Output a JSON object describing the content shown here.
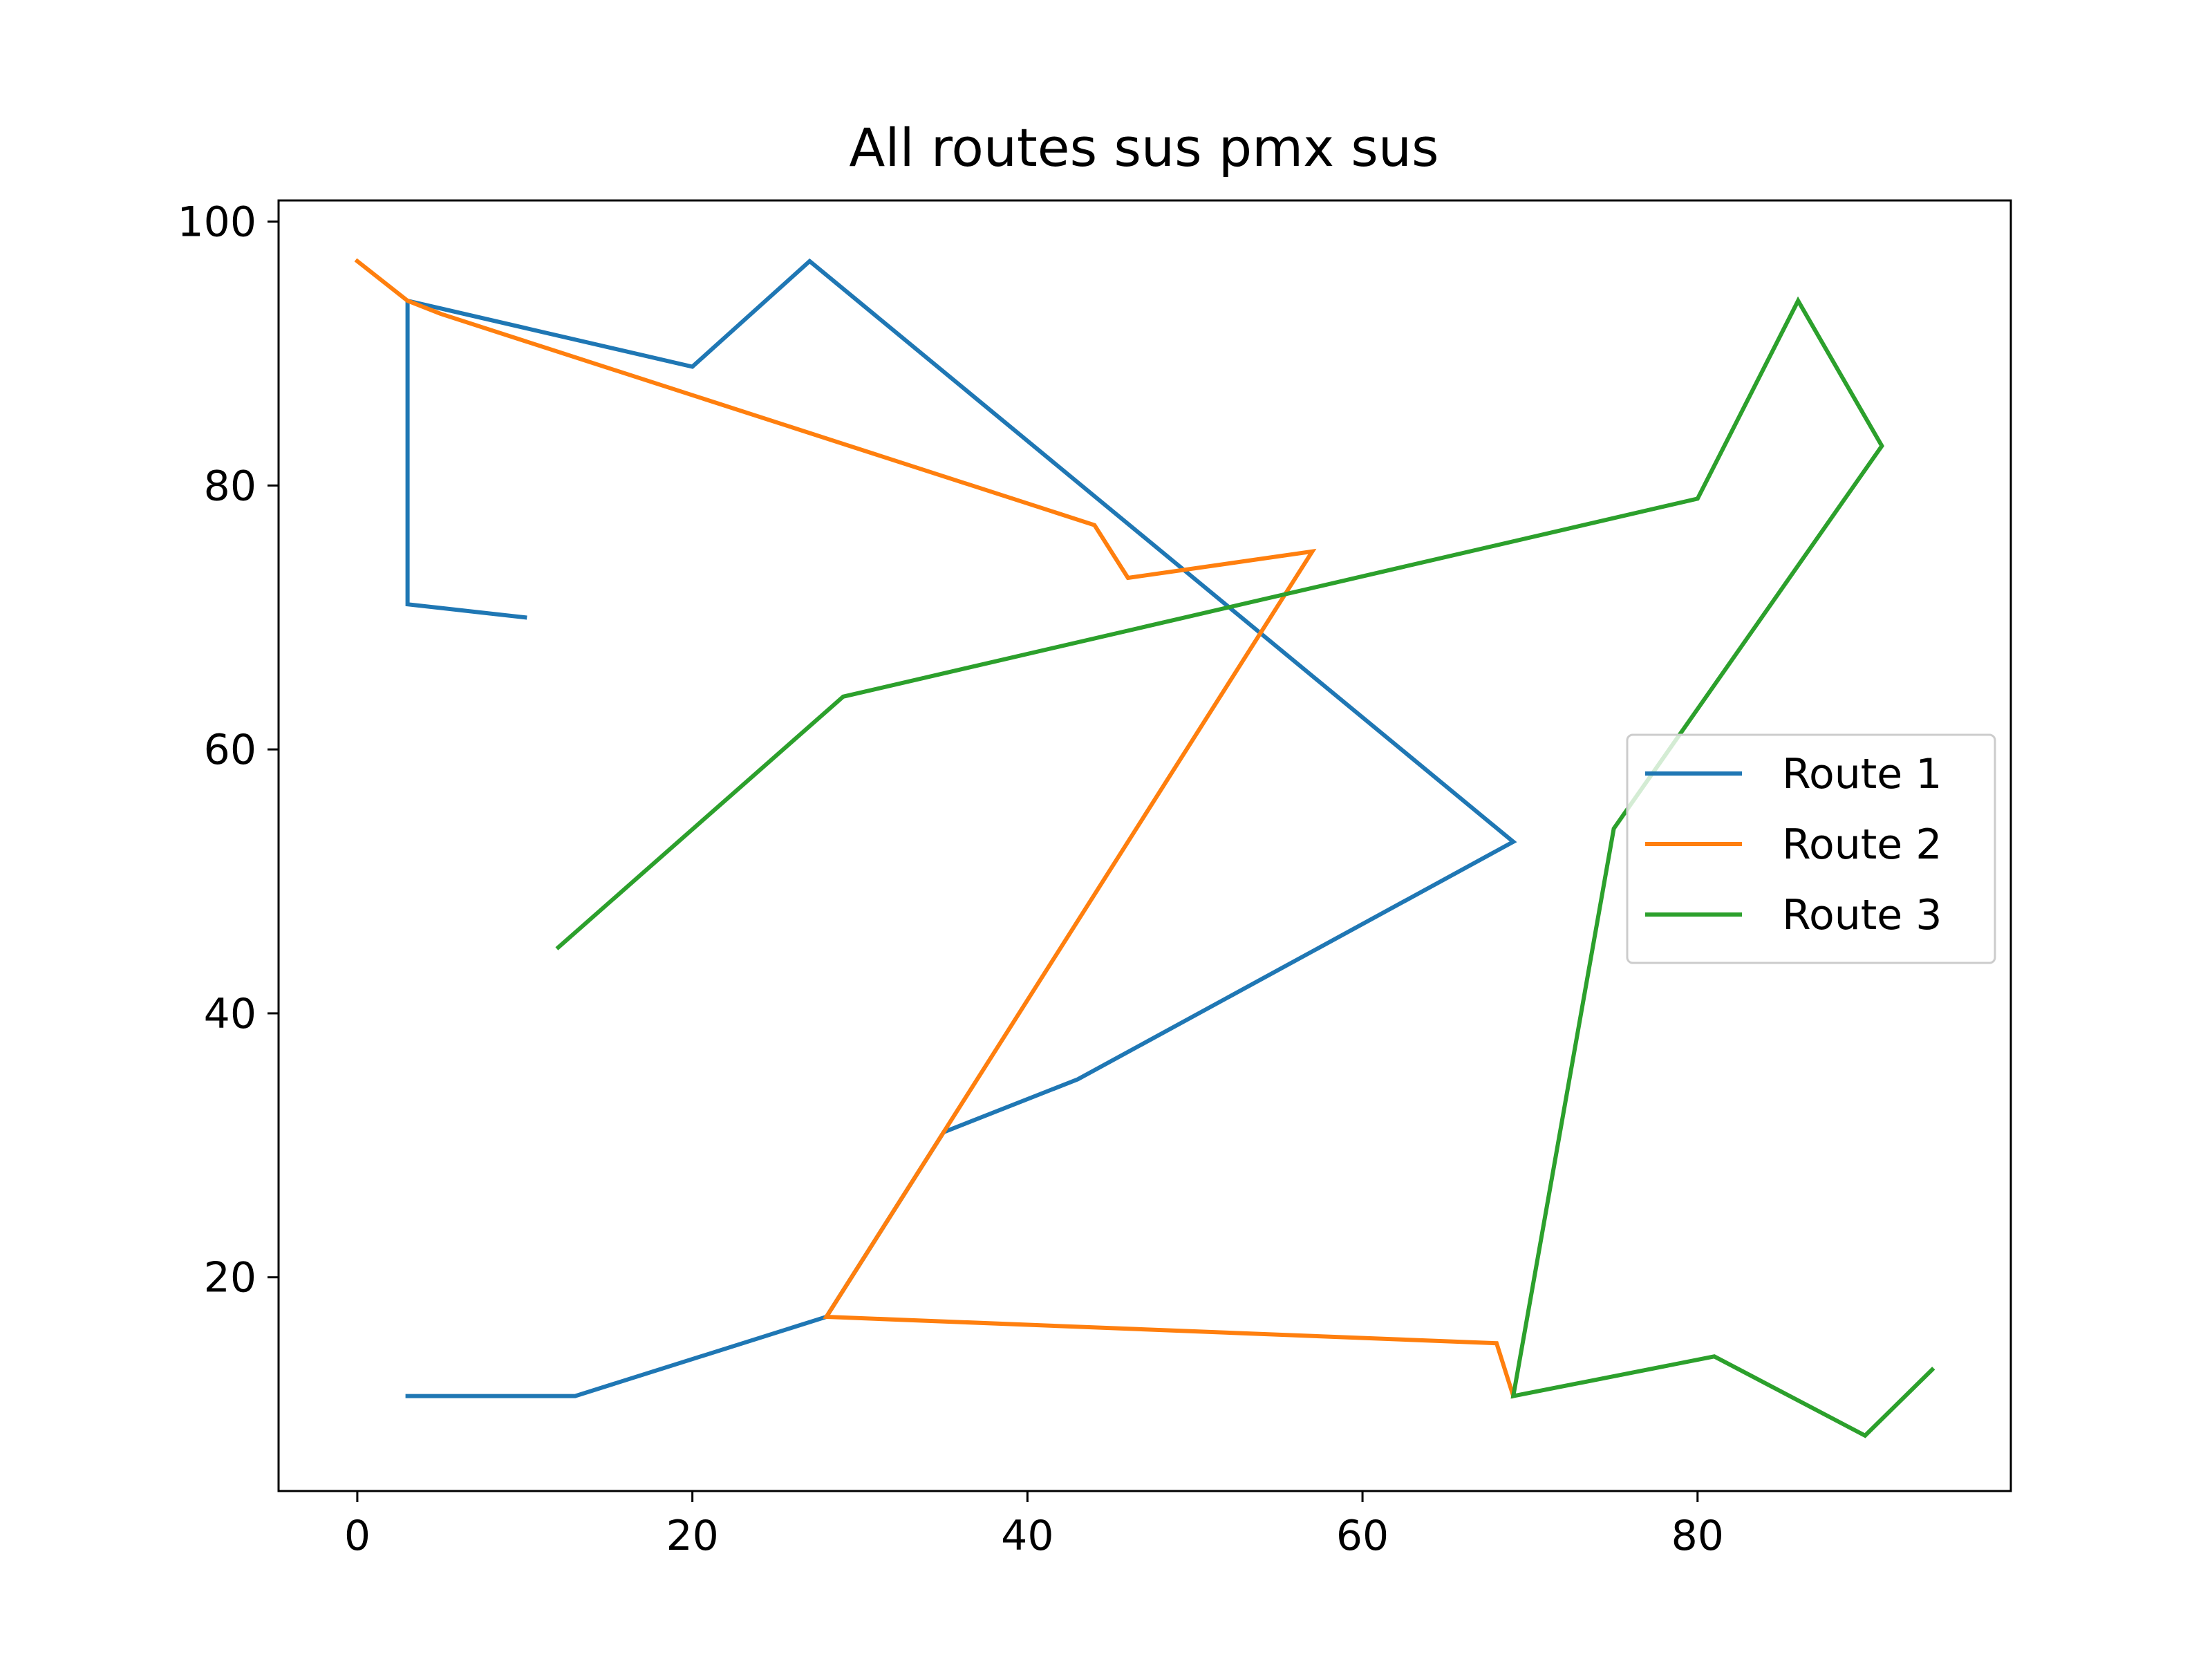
{
  "chart_data": {
    "type": "line",
    "title": "All routes sus pmx sus",
    "xlabel": "",
    "ylabel": "",
    "xlim": [
      -4.7,
      98.7
    ],
    "ylim": [
      3.8,
      101.6
    ],
    "xticks": [
      0,
      20,
      40,
      60,
      80
    ],
    "yticks": [
      20,
      40,
      60,
      80,
      100
    ],
    "grid": false,
    "legend_position": "center-right",
    "series": [
      {
        "name": "Route 1",
        "color": "#1f77b4",
        "x": [
          10,
          3,
          3,
          20,
          27,
          69,
          43,
          35,
          28,
          13,
          3
        ],
        "y": [
          70,
          71,
          94,
          89,
          97,
          53,
          35,
          31,
          17,
          11,
          11
        ]
      },
      {
        "name": "Route 2",
        "color": "#ff7f0e",
        "x": [
          0,
          3,
          5,
          44,
          46,
          57,
          28,
          68,
          69
        ],
        "y": [
          97,
          94,
          93,
          77,
          73,
          75,
          17,
          15,
          11
        ]
      },
      {
        "name": "Route 3",
        "color": "#2ca02c",
        "x": [
          12,
          29,
          80,
          86,
          91,
          75,
          69,
          81,
          90,
          94
        ],
        "y": [
          45,
          64,
          79,
          94,
          83,
          54,
          11,
          14,
          8,
          13
        ]
      }
    ]
  }
}
